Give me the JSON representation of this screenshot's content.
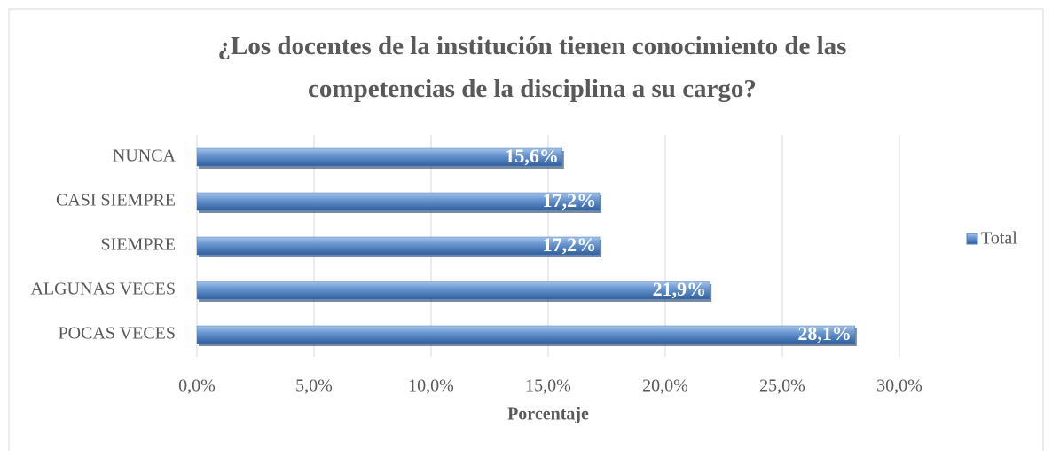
{
  "chart_data": {
    "type": "bar",
    "orientation": "horizontal",
    "title": "¿Los docentes de la institución tienen conocimiento de las competencias de la disciplina a su cargo?",
    "categories": [
      "NUNCA",
      "CASI SIEMPRE",
      "SIEMPRE",
      "ALGUNAS VECES",
      "POCAS VECES"
    ],
    "series": [
      {
        "name": "Total",
        "color": "#4f81bd",
        "values": [
          15.6,
          17.2,
          17.2,
          21.9,
          28.1
        ],
        "value_labels": [
          "15,6%",
          "17,2%",
          "17,2%",
          "21,9%",
          "28,1%"
        ]
      }
    ],
    "xlabel": "Porcentaje",
    "xlim": [
      0,
      30
    ],
    "xticks": [
      {
        "value": 0,
        "label": "0,0%"
      },
      {
        "value": 5,
        "label": "5,0%"
      },
      {
        "value": 10,
        "label": "10,0%"
      },
      {
        "value": 15,
        "label": "15,0%"
      },
      {
        "value": 20,
        "label": "20,0%"
      },
      {
        "value": 25,
        "label": "25,0%"
      },
      {
        "value": 30,
        "label": "30,0%"
      }
    ],
    "grid": true,
    "legend": "right"
  }
}
